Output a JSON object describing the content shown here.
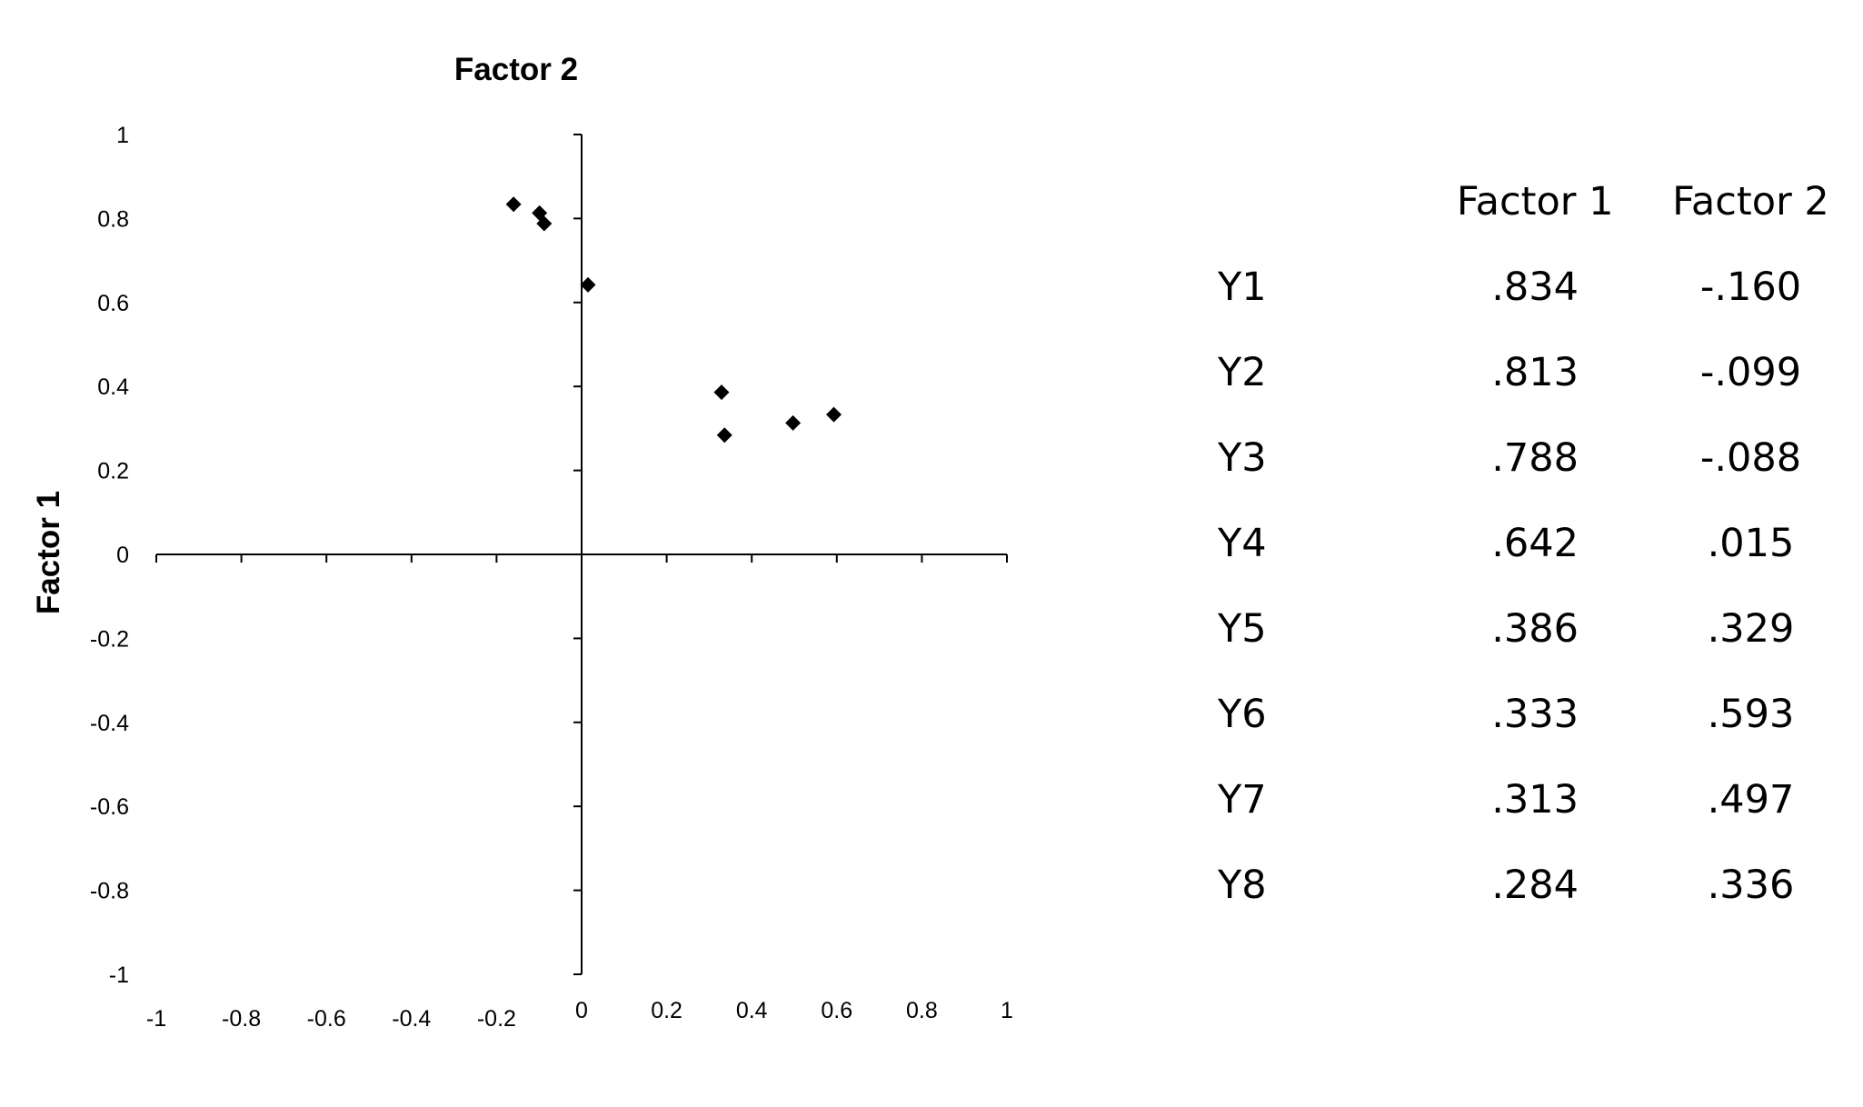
{
  "chart_data": {
    "type": "scatter",
    "title": "",
    "xlabel": "Factor 2",
    "ylabel": "Factor 1",
    "xlim": [
      -1,
      1
    ],
    "ylim": [
      -1,
      1
    ],
    "x_ticks": [
      "-1",
      "-0.8",
      "-0.6",
      "-0.4",
      "-0.2",
      "0",
      "0.2",
      "0.4",
      "0.6",
      "0.8",
      "1"
    ],
    "x_tick_values": [
      -1,
      -0.8,
      -0.6,
      -0.4,
      -0.2,
      0,
      0.2,
      0.4,
      0.6,
      0.8,
      1
    ],
    "y_ticks": [
      "1",
      "0.8",
      "0.6",
      "0.4",
      "0.2",
      "0",
      "-0.2",
      "-0.4",
      "-0.6",
      "-0.8",
      "-1"
    ],
    "y_tick_values": [
      1,
      0.8,
      0.6,
      0.4,
      0.2,
      0,
      -0.2,
      -0.4,
      -0.6,
      -0.8,
      -1
    ],
    "grid": false,
    "marker": "diamond",
    "marker_color": "#000000",
    "points": [
      {
        "label": "Y1",
        "x": -0.16,
        "y": 0.834
      },
      {
        "label": "Y2",
        "x": -0.099,
        "y": 0.813
      },
      {
        "label": "Y3",
        "x": -0.088,
        "y": 0.788
      },
      {
        "label": "Y4",
        "x": 0.015,
        "y": 0.642
      },
      {
        "label": "Y5",
        "x": 0.329,
        "y": 0.386
      },
      {
        "label": "Y6",
        "x": 0.593,
        "y": 0.333
      },
      {
        "label": "Y7",
        "x": 0.497,
        "y": 0.313
      },
      {
        "label": "Y8",
        "x": 0.336,
        "y": 0.284
      }
    ]
  },
  "table": {
    "headers": [
      "",
      "Factor 1",
      "Factor 2"
    ],
    "rows": [
      {
        "variable": "Y1",
        "factor1": ".834",
        "factor2": "-.160"
      },
      {
        "variable": "Y2",
        "factor1": ".813",
        "factor2": "-.099"
      },
      {
        "variable": "Y3",
        "factor1": ".788",
        "factor2": "-.088"
      },
      {
        "variable": "Y4",
        "factor1": ".642",
        "factor2": ".015"
      },
      {
        "variable": "Y5",
        "factor1": ".386",
        "factor2": ".329"
      },
      {
        "variable": "Y6",
        "factor1": ".333",
        "factor2": ".593"
      },
      {
        "variable": "Y7",
        "factor1": ".313",
        "factor2": ".497"
      },
      {
        "variable": "Y8",
        "factor1": ".284",
        "factor2": ".336"
      }
    ]
  }
}
